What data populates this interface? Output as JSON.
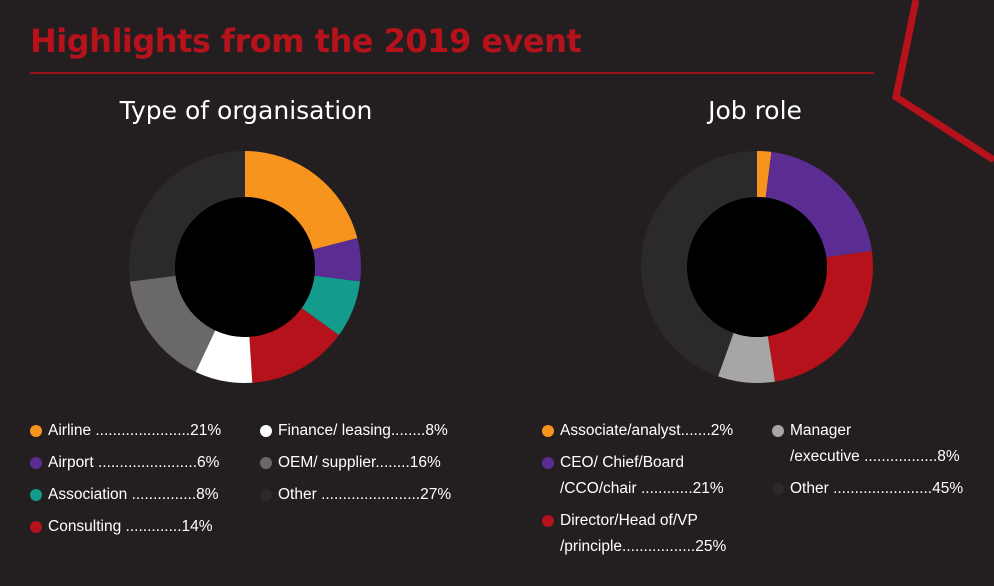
{
  "header": {
    "title": "Highlights from the 2019 event"
  },
  "colors": {
    "accent": "#b5121b",
    "background": "#231f20"
  },
  "chart_data": [
    {
      "type": "pie",
      "title": "Type of organisation",
      "series": [
        {
          "name": "Airline",
          "value": 21,
          "label": "Airline ......................21%",
          "color": "#f7941d"
        },
        {
          "name": "Airport",
          "value": 6,
          "label": "Airport .......................6%",
          "color": "#5b2c91"
        },
        {
          "name": "Association",
          "value": 8,
          "label": "Association ...............8%",
          "color": "#139b8c"
        },
        {
          "name": "Consulting",
          "value": 14,
          "label": "Consulting .............14%",
          "color": "#b5121b"
        },
        {
          "name": "Finance/ leasing",
          "value": 8,
          "label": "Finance/ leasing........8%",
          "color": "#ffffff"
        },
        {
          "name": "OEM/ supplier",
          "value": 16,
          "label": "OEM/ supplier........16%",
          "color": "#6a6869"
        },
        {
          "name": "Other",
          "value": 27,
          "label": "Other .......................27%",
          "color": "#2b292c"
        }
      ]
    },
    {
      "type": "pie",
      "title": "Job role",
      "series": [
        {
          "name": "Associate/analyst",
          "value": 2,
          "label": "Associate/analyst.......2%",
          "color": "#f7941d"
        },
        {
          "name": "CEO/ Chief/Board /CCO/chair",
          "value": 21,
          "label": "CEO/ Chief/Board",
          "label2": "/CCO/chair ............21%",
          "color": "#5b2c91"
        },
        {
          "name": "Director/Head of/VP /principle",
          "value": 25,
          "label": "Director/Head of/VP",
          "label2": "/principle.................25%",
          "color": "#b5121b"
        },
        {
          "name": "Manager /executive",
          "value": 8,
          "label": "Manager",
          "label2": "/executive .................8%",
          "color": "#a7a5a6"
        },
        {
          "name": "Other",
          "value": 45,
          "label": "Other .......................45%",
          "color": "#2b292c"
        }
      ]
    }
  ]
}
